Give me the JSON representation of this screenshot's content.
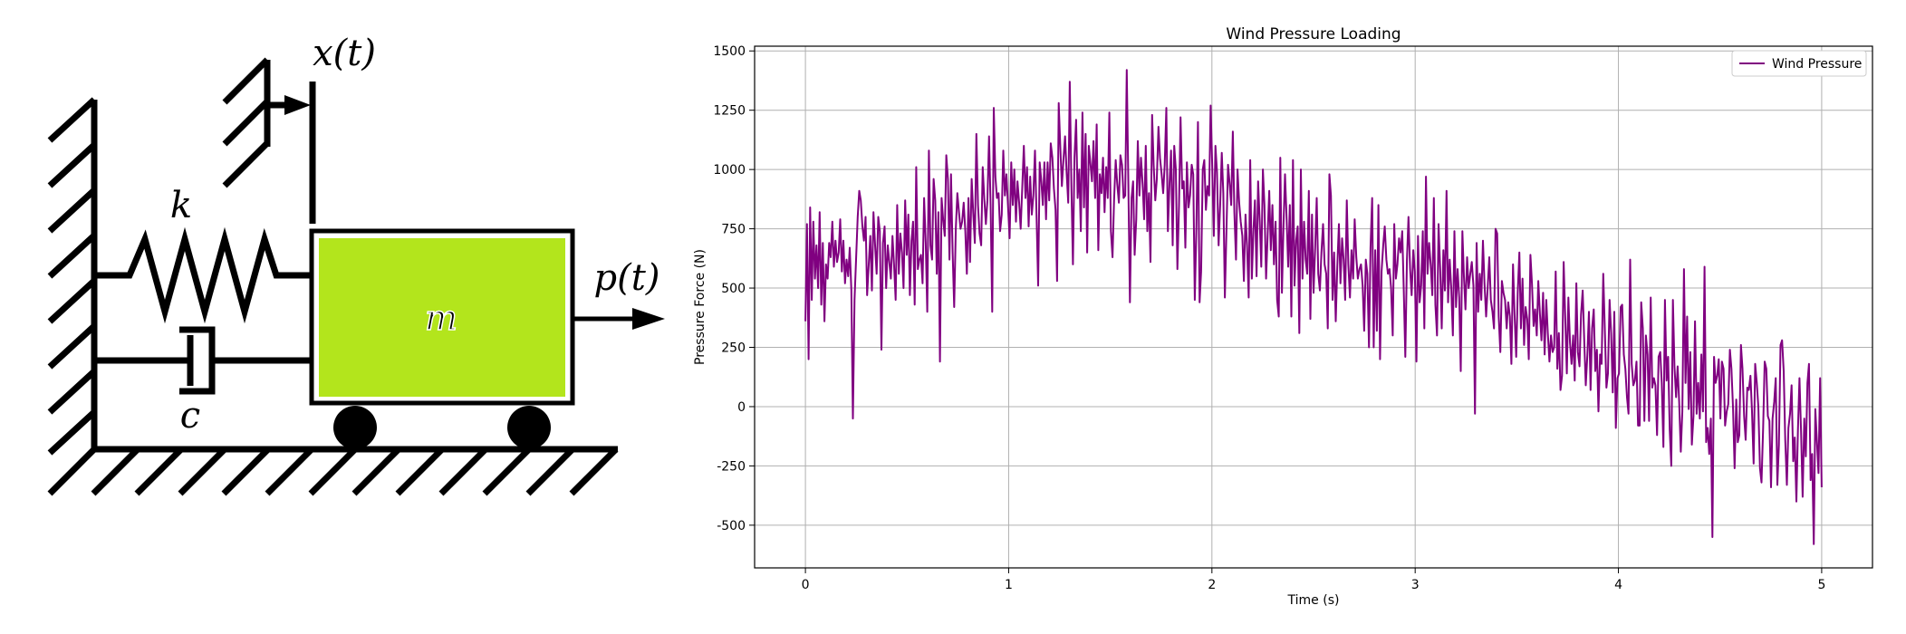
{
  "diagram": {
    "label_k": "k",
    "label_c": "c",
    "label_m": "m",
    "label_x": "x(t)",
    "label_p": "p(t)",
    "mass_color": "#b3e51c"
  },
  "chart_data": {
    "type": "line",
    "title": "Wind Pressure Loading",
    "xlabel": "Time (s)",
    "ylabel": "Pressure Force (N)",
    "xlim": [
      -0.25,
      5.25
    ],
    "ylim": [
      -680,
      1520
    ],
    "x_ticks": [
      0,
      1,
      2,
      3,
      4,
      5
    ],
    "y_ticks": [
      -500,
      -250,
      0,
      250,
      500,
      750,
      1000,
      1250,
      1500
    ],
    "grid": true,
    "legend_position": "top-right",
    "series": [
      {
        "name": "Wind Pressure",
        "color": "#800080",
        "x_start": 0,
        "x_end": 5,
        "values": [
          360,
          770,
          200,
          840,
          450,
          780,
          540,
          680,
          500,
          820,
          430,
          690,
          360,
          600,
          540,
          690,
          630,
          780,
          590,
          700,
          610,
          650,
          790,
          570,
          700,
          520,
          620,
          550,
          670,
          490,
          -50,
          450,
          620,
          800,
          910,
          870,
          760,
          700,
          800,
          470,
          600,
          720,
          490,
          820,
          680,
          560,
          800,
          740,
          240,
          690,
          760,
          500,
          680,
          610,
          540,
          720,
          600,
          450,
          850,
          560,
          730,
          650,
          500,
          870,
          640,
          810,
          470,
          700,
          780,
          430,
          1010,
          580,
          620,
          640,
          520,
          880,
          690,
          400,
          1080,
          680,
          620,
          960,
          870,
          560,
          820,
          190,
          880,
          790,
          720,
          1060,
          960,
          620,
          980,
          650,
          420,
          750,
          900,
          820,
          750,
          780,
          860,
          740,
          560,
          880,
          610,
          960,
          820,
          690,
          1150,
          850,
          730,
          680,
          1010,
          880,
          770,
          870,
          1140,
          850,
          400,
          1260,
          970,
          880,
          900,
          740,
          810,
          1080,
          890,
          980,
          840,
          710,
          1030,
          850,
          1000,
          780,
          950,
          860,
          750,
          930,
          1100,
          880,
          1010,
          760,
          970,
          810,
          890,
          1080,
          810,
          510,
          1030,
          950,
          850,
          1030,
          790,
          1030,
          870,
          1110,
          1050,
          920,
          830,
          530,
          1280,
          1100,
          930,
          1040,
          1140,
          990,
          860,
          1370,
          930,
          600,
          1050,
          1210,
          880,
          1000,
          740,
          1240,
          840,
          1150,
          650,
          1100,
          1030,
          950,
          1120,
          880,
          1190,
          660,
          980,
          900,
          1050,
          820,
          1010,
          880,
          1240,
          740,
          630,
          870,
          1040,
          940,
          860,
          1060,
          1020,
          880,
          890,
          1420,
          930,
          440,
          880,
          950,
          640,
          790,
          1120,
          890,
          1050,
          940,
          790,
          1100,
          740,
          900,
          610,
          1230,
          1020,
          870,
          960,
          1180,
          1050,
          980,
          900,
          1020,
          1260,
          740,
          940,
          1080,
          680,
          1100,
          1000,
          580,
          850,
          1220,
          920,
          950,
          670,
          1030,
          840,
          890,
          1020,
          980,
          450,
          760,
          1200,
          440,
          570,
          1000,
          1040,
          830,
          930,
          890,
          1270,
          1010,
          720,
          1100,
          990,
          680,
          850,
          1070,
          900,
          460,
          750,
          1020,
          940,
          850,
          1160,
          820,
          620,
          1000,
          860,
          780,
          720,
          530,
          810,
          680,
          460,
          1040,
          540,
          740,
          870,
          550,
          950,
          780,
          590,
          1000,
          850,
          540,
          720,
          910,
          660,
          850,
          600,
          780,
          450,
          380,
          1050,
          480,
          760,
          980,
          790,
          590,
          850,
          380,
          1040,
          510,
          700,
          760,
          310,
          1000,
          540,
          780,
          620,
          560,
          910,
          370,
          810,
          480,
          660,
          880,
          560,
          490,
          650,
          770,
          600,
          560,
          330,
          980,
          890,
          450,
          650,
          360,
          590,
          770,
          520,
          710,
          620,
          450,
          870,
          600,
          460,
          660,
          540,
          790,
          630,
          540,
          580,
          600,
          510,
          320,
          620,
          560,
          250,
          670,
          880,
          250,
          660,
          320,
          850,
          200,
          570,
          680,
          760,
          620,
          560,
          580,
          500,
          300,
          770,
          540,
          600,
          710,
          650,
          740,
          490,
          210,
          620,
          800,
          580,
          470,
          660,
          570,
          190,
          720,
          440,
          510,
          740,
          330,
          970,
          560,
          690,
          600,
          470,
          880,
          430,
          300,
          770,
          580,
          330,
          660,
          490,
          910,
          440,
          620,
          500,
          300,
          740,
          420,
          580,
          460,
          150,
          740,
          550,
          410,
          630,
          500,
          560,
          610,
          510,
          -30,
          690,
          400,
          560,
          450,
          700,
          520,
          380,
          500,
          630,
          450,
          400,
          330,
          750,
          730,
          380,
          230,
          530,
          480,
          450,
          330,
          440,
          380,
          180,
          600,
          390,
          210,
          480,
          650,
          330,
          540,
          260,
          420,
          370,
          200,
          640,
          520,
          340,
          410,
          300,
          530,
          390,
          280,
          480,
          220,
          450,
          310,
          190,
          300,
          230,
          250,
          570,
          160,
          310,
          70,
          130,
          610,
          380,
          140,
          460,
          270,
          180,
          300,
          110,
          520,
          230,
          170,
          390,
          490,
          280,
          90,
          220,
          400,
          70,
          330,
          410,
          150,
          240,
          -20,
          220,
          180,
          560,
          330,
          80,
          140,
          450,
          310,
          60,
          400,
          -90,
          120,
          140,
          420,
          430,
          220,
          160,
          40,
          -30,
          620,
          180,
          90,
          110,
          190,
          -80,
          -80,
          440,
          330,
          -60,
          300,
          220,
          -60,
          460,
          80,
          120,
          90,
          -120,
          210,
          230,
          100,
          -170,
          450,
          110,
          210,
          -100,
          -250,
          450,
          170,
          40,
          170,
          20,
          -190,
          -20,
          580,
          100,
          380,
          -10,
          230,
          -160,
          -40,
          360,
          -30,
          100,
          -50,
          220,
          -20,
          590,
          -150,
          -90,
          -200,
          -50,
          -550,
          210,
          100,
          130,
          200,
          -50,
          190,
          160,
          -80,
          -20,
          10,
          240,
          160,
          -10,
          -260,
          30,
          -150,
          -120,
          260,
          160,
          -40,
          -140,
          80,
          70,
          130,
          -20,
          -240,
          180,
          100,
          0,
          -260,
          -320,
          -90,
          190,
          160,
          -40,
          -60,
          -340,
          -50,
          20,
          120,
          -330,
          -160,
          260,
          280,
          150,
          -140,
          -330,
          -90,
          -30,
          90,
          -230,
          -130,
          -400,
          -100,
          120,
          -110,
          -380,
          -50,
          -210,
          100,
          180,
          -310,
          -200,
          -580,
          -10,
          -150,
          -280,
          120,
          -340
        ]
      }
    ]
  }
}
